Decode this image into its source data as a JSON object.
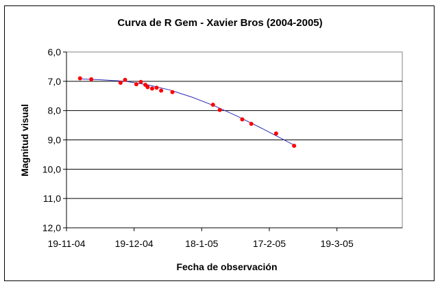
{
  "chart_data": {
    "type": "scatter",
    "title": "Curva de R Gem - Xavier Bros (2004-2005)",
    "xlabel": "Fecha de observación",
    "ylabel": "Magnitud visual",
    "y_reversed": true,
    "ylim": [
      6.0,
      12.0
    ],
    "y_ticks": [
      {
        "value": 6.0,
        "label": "6,0"
      },
      {
        "value": 7.0,
        "label": "7,0"
      },
      {
        "value": 8.0,
        "label": "8,0"
      },
      {
        "value": 9.0,
        "label": "9,0"
      },
      {
        "value": 10.0,
        "label": "10,0"
      },
      {
        "value": 11.0,
        "label": "11,0"
      },
      {
        "value": 12.0,
        "label": "12,0"
      }
    ],
    "xlim": [
      "2004-11-19",
      "2005-04-17"
    ],
    "x_ticks": [
      {
        "value": "2004-11-19",
        "label": "19-11-04"
      },
      {
        "value": "2004-12-19",
        "label": "19-12-04"
      },
      {
        "value": "2005-01-18",
        "label": "18-1-05"
      },
      {
        "value": "2005-02-17",
        "label": "17-2-05"
      },
      {
        "value": "2005-03-19",
        "label": "19-3-05"
      }
    ],
    "grid": {
      "horizontal": true,
      "vertical": false
    },
    "legend": "none",
    "marker_color": "#ff0000",
    "trend_color": "#2b2bb8",
    "points": [
      {
        "x": "2004-11-25",
        "y": 6.9
      },
      {
        "x": "2004-11-30",
        "y": 6.93
      },
      {
        "x": "2004-12-13",
        "y": 7.05
      },
      {
        "x": "2004-12-15",
        "y": 6.95
      },
      {
        "x": "2004-12-20",
        "y": 7.1
      },
      {
        "x": "2004-12-22",
        "y": 7.02
      },
      {
        "x": "2004-12-24",
        "y": 7.12
      },
      {
        "x": "2004-12-25",
        "y": 7.2
      },
      {
        "x": "2004-12-27",
        "y": 7.25
      },
      {
        "x": "2004-12-29",
        "y": 7.22
      },
      {
        "x": "2004-12-31",
        "y": 7.32
      },
      {
        "x": "2005-01-05",
        "y": 7.37
      },
      {
        "x": "2005-01-23",
        "y": 7.8
      },
      {
        "x": "2005-01-26",
        "y": 7.98
      },
      {
        "x": "2005-02-05",
        "y": 8.3
      },
      {
        "x": "2005-02-09",
        "y": 8.45
      },
      {
        "x": "2005-02-20",
        "y": 8.78
      },
      {
        "x": "2005-02-28",
        "y": 9.2
      }
    ],
    "trendline": {
      "type": "polynomial",
      "x": [
        "2004-11-25",
        "2004-12-05",
        "2004-12-15",
        "2004-12-25",
        "2005-01-04",
        "2005-01-14",
        "2005-01-24",
        "2005-02-03",
        "2005-02-13",
        "2005-02-23",
        "2005-02-28"
      ],
      "y": [
        6.92,
        6.95,
        7.0,
        7.12,
        7.3,
        7.55,
        7.85,
        8.2,
        8.58,
        8.98,
        9.18
      ]
    }
  }
}
